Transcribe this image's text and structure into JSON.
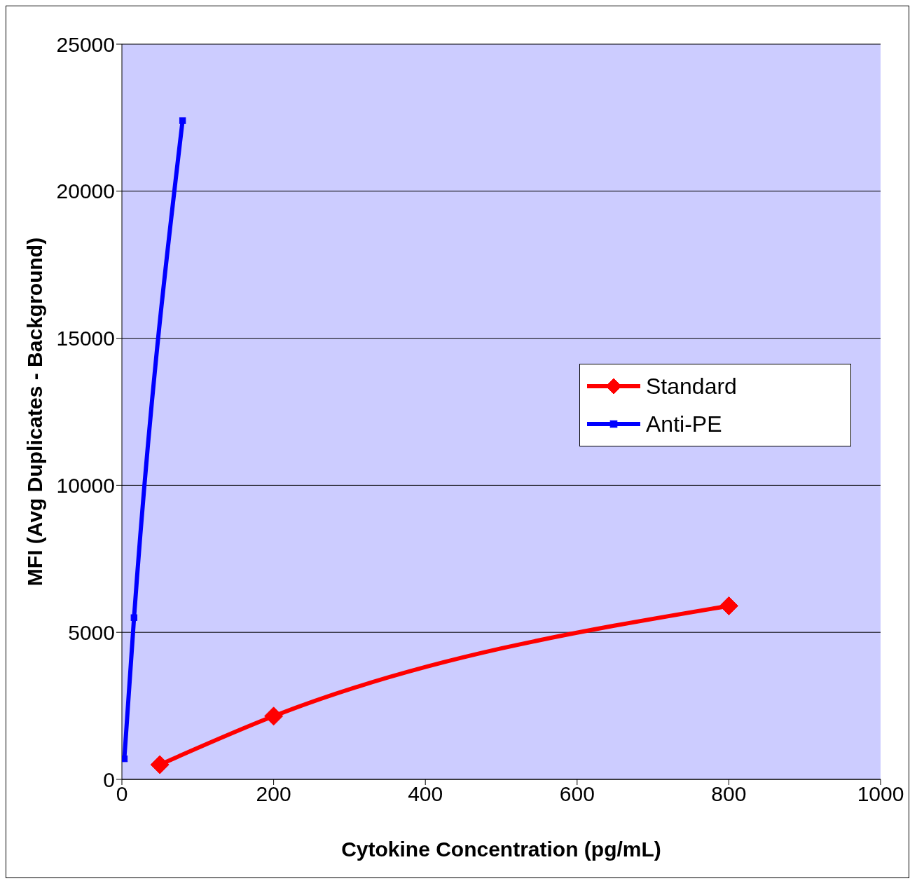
{
  "chart_data": {
    "type": "line",
    "xlabel": "Cytokine Concentration (pg/mL)",
    "ylabel": "MFI (Avg Duplicates - Background)",
    "xlim": [
      0,
      1000
    ],
    "xticks": [
      0,
      200,
      400,
      600,
      800,
      1000
    ],
    "ylim": [
      0,
      25000
    ],
    "yticks": [
      0,
      5000,
      10000,
      15000,
      20000,
      25000
    ],
    "grid": "y",
    "legend": "right",
    "line_style": "solid",
    "series": [
      {
        "name": "Standard",
        "color": "#ff0000",
        "marker": "diamond",
        "x": [
          50,
          200,
          800
        ],
        "values": [
          500,
          2150,
          5900
        ]
      },
      {
        "name": "Anti-PE",
        "color": "#0000ff",
        "marker": "square",
        "x": [
          3.2,
          16,
          80
        ],
        "values": [
          700,
          5500,
          22400
        ]
      }
    ]
  }
}
